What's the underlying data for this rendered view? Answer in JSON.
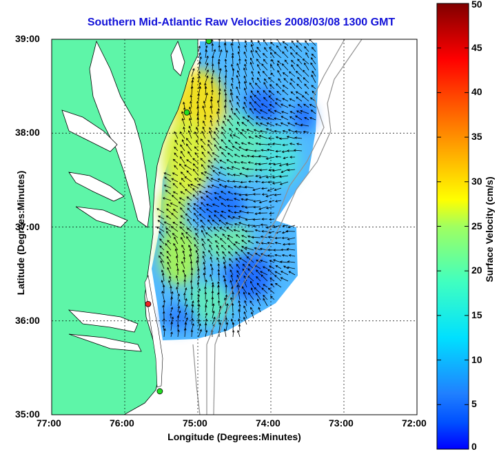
{
  "map": {
    "title": "Southern Mid-Atlantic Raw Velocities 2008/03/08 1300 GMT",
    "xlabel": "Longitude (Degrees:Minutes)",
    "ylabel": "Latitude (Degrees:Minutes)",
    "x_ticks": [
      "77:00",
      "76:00",
      "75:00",
      "74:00",
      "73:00",
      "72:00"
    ],
    "y_ticks": [
      "39:00",
      "38:00",
      "37:00",
      "36:00",
      "35:00"
    ],
    "lon_range": [
      -77,
      -72
    ],
    "lat_range": [
      35,
      39
    ],
    "grid": true,
    "land_color": "#5ef5a8",
    "water_color": "#ffffff",
    "stations": [
      {
        "name": "station-1",
        "lon": -74.85,
        "lat": 38.98,
        "color": "#22dd22"
      },
      {
        "name": "station-2",
        "lon": -75.15,
        "lat": 38.22,
        "color": "#22dd22"
      },
      {
        "name": "station-3",
        "lon": -75.68,
        "lat": 36.18,
        "color": "#ee2222"
      },
      {
        "name": "station-4",
        "lon": -75.52,
        "lat": 35.25,
        "color": "#22dd22"
      }
    ]
  },
  "colorbar": {
    "label": "Surface Velocity (cm/s)",
    "ticks": [
      "0",
      "5",
      "10",
      "15",
      "20",
      "25",
      "30",
      "35",
      "40",
      "45",
      "50"
    ],
    "min": 0,
    "max": 50,
    "colormap": "jet"
  }
}
